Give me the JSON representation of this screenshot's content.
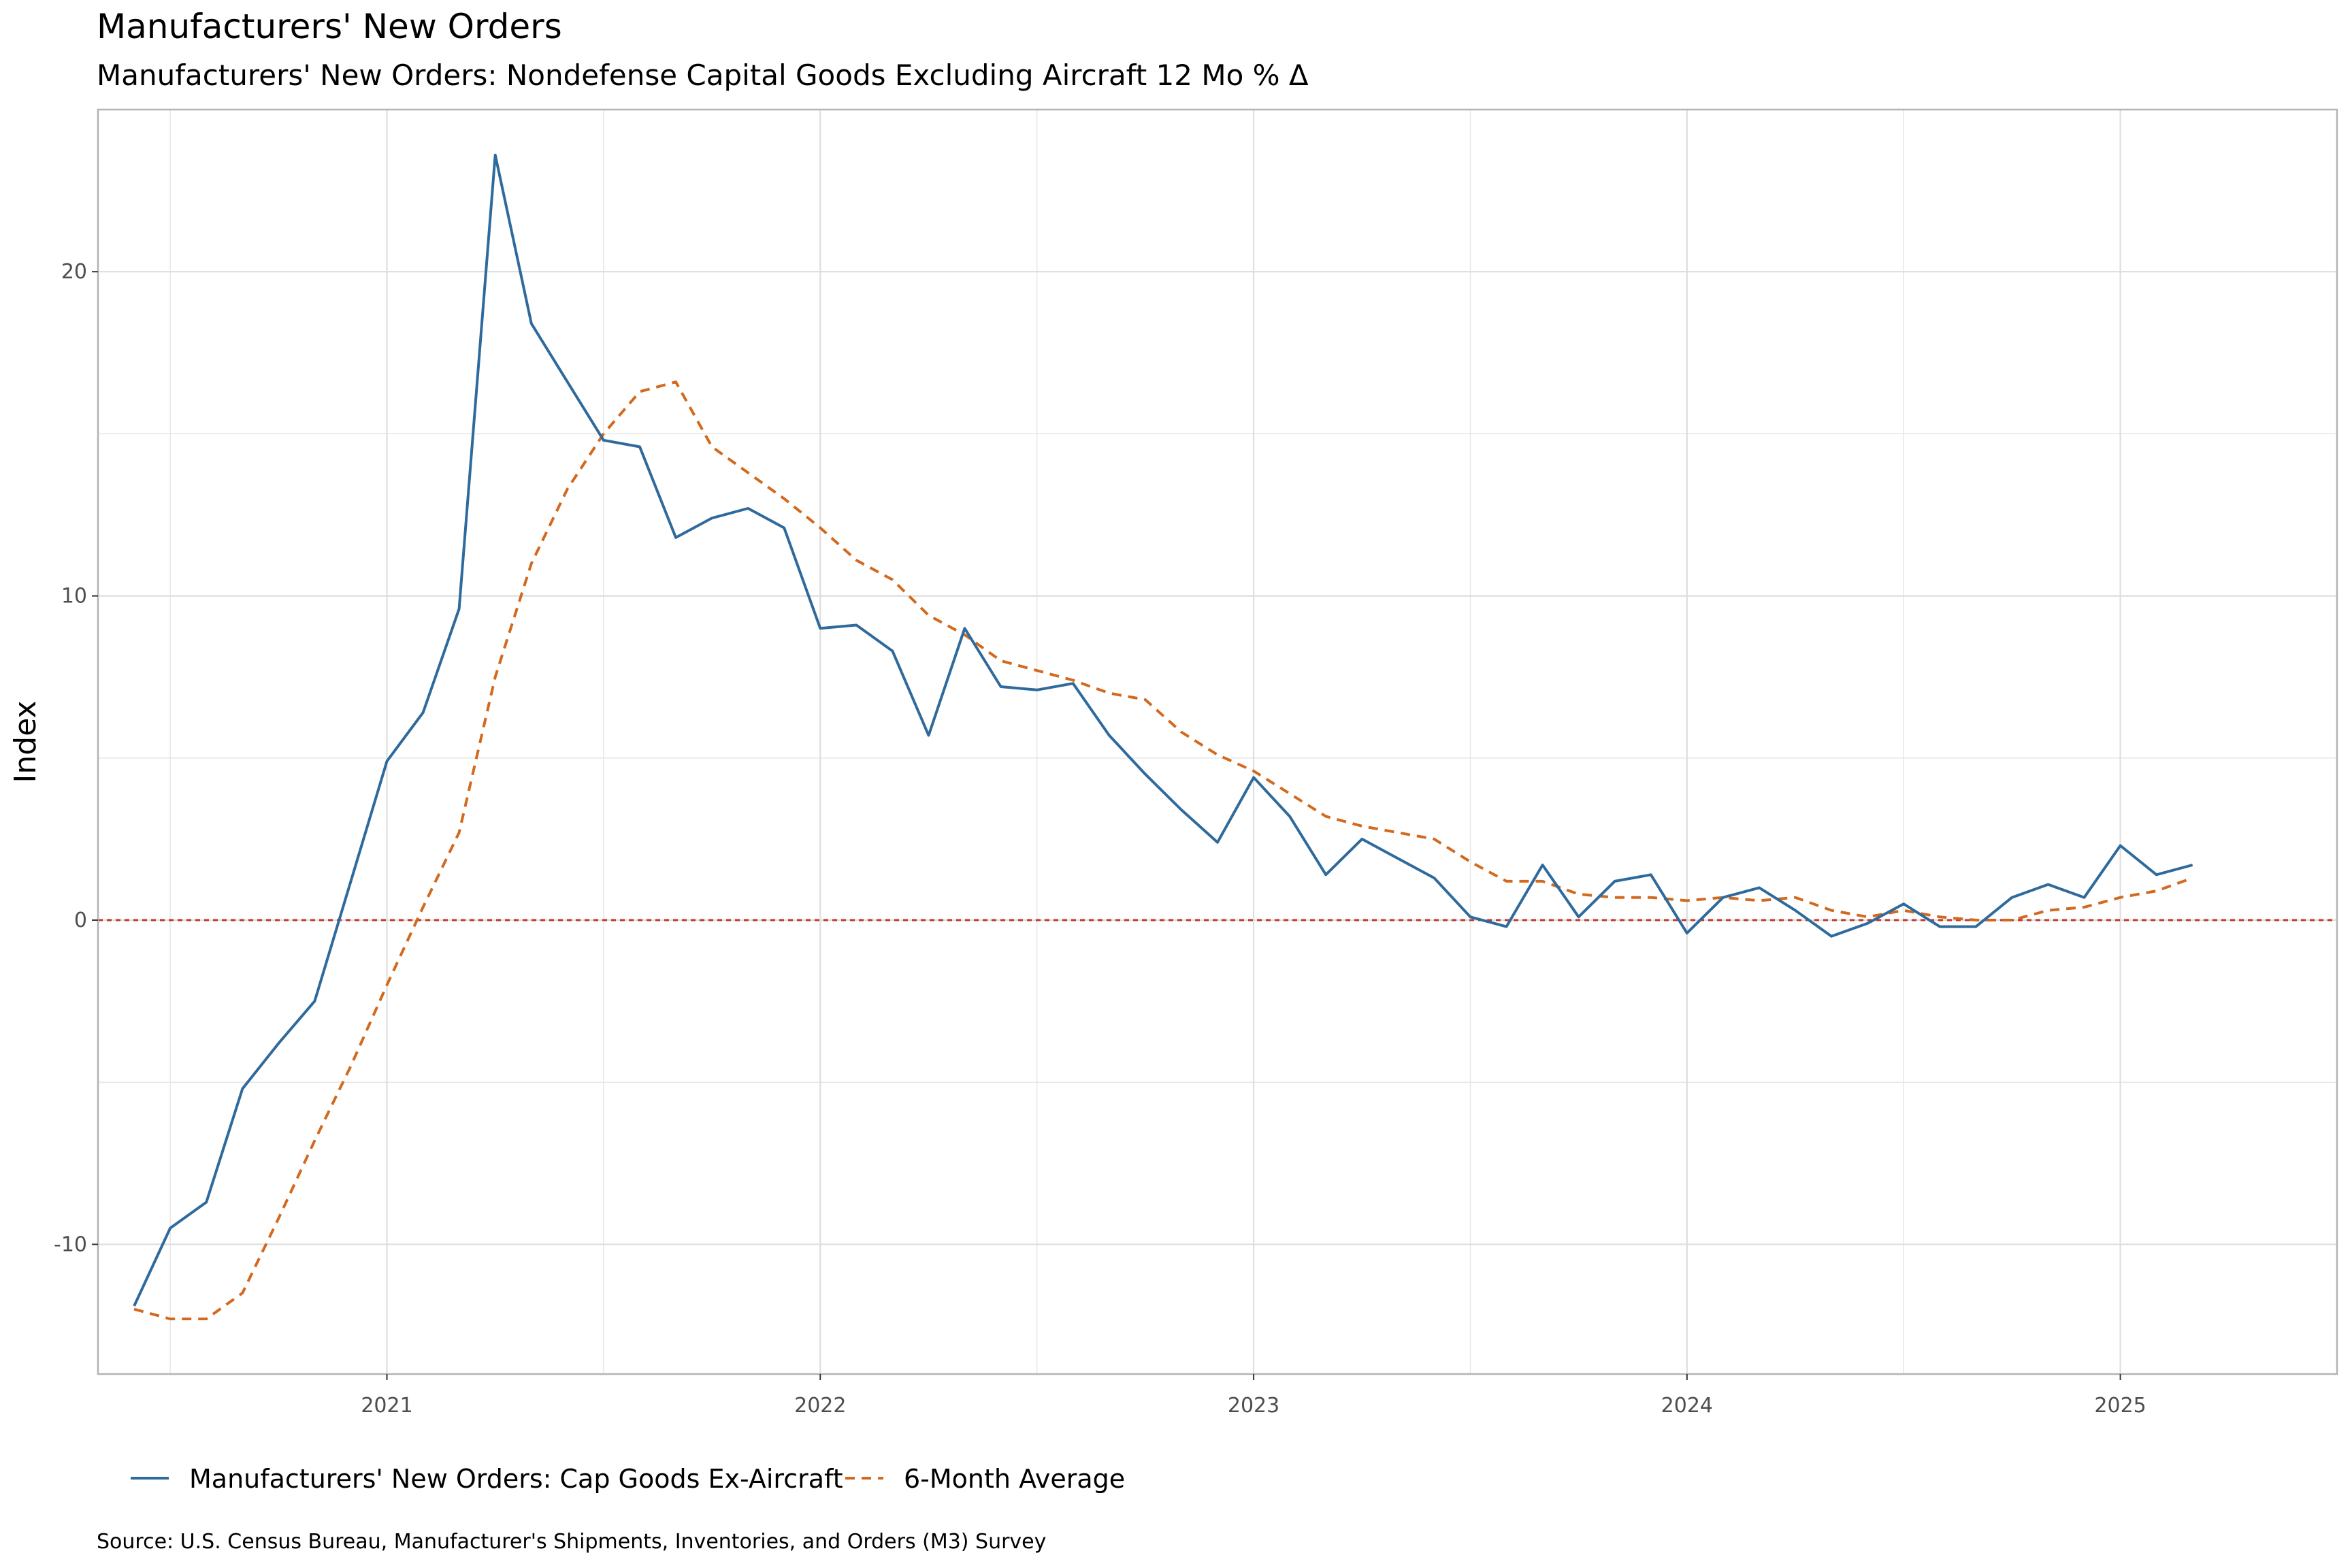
{
  "title": "Manufacturers' New Orders",
  "subtitle": "Manufacturers' New Orders: Nondefense Capital Goods Excluding Aircraft 12 Mo % Δ",
  "source": "Source: U.S. Census Bureau, Manufacturer's Shipments, Inventories, and Orders (M3) Survey",
  "colors": {
    "series1": "#2f6a9c",
    "series2": "#d2691e",
    "zero_line": "#c0392b",
    "grid": "#e6e6e6",
    "panel_border": "#b3b3b3"
  },
  "chart_data": {
    "type": "line",
    "ylabel": "Index",
    "xlabel": "",
    "ylim": [
      -14,
      25
    ],
    "xlim": [
      "2020-05",
      "2025-07"
    ],
    "y_ticks": [
      -10,
      0,
      10,
      20
    ],
    "y_tick_labels": [
      "-10",
      "0",
      "10",
      "20"
    ],
    "x_ticks": [
      "2021-01",
      "2022-01",
      "2023-01",
      "2024-01",
      "2025-01"
    ],
    "x_tick_labels": [
      "2021",
      "2022",
      "2023",
      "2024",
      "2025"
    ],
    "grid": true,
    "legend_position": "bottom",
    "reference_line": {
      "y": 0,
      "style": "dashed"
    },
    "x": [
      "2020-06",
      "2020-07",
      "2020-08",
      "2020-09",
      "2020-10",
      "2020-11",
      "2020-12",
      "2021-01",
      "2021-02",
      "2021-03",
      "2021-04",
      "2021-05",
      "2021-06",
      "2021-07",
      "2021-08",
      "2021-09",
      "2021-10",
      "2021-11",
      "2021-12",
      "2022-01",
      "2022-02",
      "2022-03",
      "2022-04",
      "2022-05",
      "2022-06",
      "2022-07",
      "2022-08",
      "2022-09",
      "2022-10",
      "2022-11",
      "2022-12",
      "2023-01",
      "2023-02",
      "2023-03",
      "2023-04",
      "2023-05",
      "2023-06",
      "2023-07",
      "2023-08",
      "2023-09",
      "2023-10",
      "2023-11",
      "2023-12",
      "2024-01",
      "2024-02",
      "2024-03",
      "2024-04",
      "2024-05",
      "2024-06",
      "2024-07",
      "2024-08",
      "2024-09",
      "2024-10",
      "2024-11",
      "2024-12",
      "2025-01",
      "2025-02",
      "2025-03"
    ],
    "series": [
      {
        "name": "Manufacturers' New Orders: Cap Goods Ex-Aircraft",
        "style": "solid",
        "values": [
          -11.9,
          -9.5,
          -8.7,
          -5.2,
          -3.8,
          -2.5,
          1.2,
          4.9,
          6.4,
          9.6,
          23.6,
          18.4,
          16.6,
          14.8,
          14.6,
          11.8,
          12.4,
          12.7,
          12.1,
          9.0,
          9.1,
          8.3,
          5.7,
          9.0,
          7.2,
          7.1,
          7.3,
          5.7,
          4.5,
          3.4,
          2.4,
          4.4,
          3.2,
          1.4,
          2.5,
          1.9,
          1.3,
          0.1,
          -0.2,
          1.7,
          0.1,
          1.2,
          1.4,
          -0.4,
          0.7,
          1.0,
          0.3,
          -0.5,
          -0.1,
          0.5,
          -0.2,
          -0.2,
          0.7,
          1.1,
          0.7,
          2.3,
          1.4,
          1.7
        ]
      },
      {
        "name": "6-Month Average",
        "style": "dashed",
        "values": [
          -12.0,
          -12.3,
          -12.3,
          -11.5,
          -9.2,
          -6.8,
          -4.5,
          -2.0,
          0.4,
          2.7,
          7.5,
          11.0,
          13.3,
          15.0,
          16.3,
          16.6,
          14.6,
          13.8,
          13.0,
          12.1,
          11.1,
          10.5,
          9.4,
          8.8,
          8.0,
          7.7,
          7.4,
          7.0,
          6.8,
          5.8,
          5.1,
          4.6,
          3.9,
          3.2,
          2.9,
          2.7,
          2.5,
          1.8,
          1.2,
          1.2,
          0.8,
          0.7,
          0.7,
          0.6,
          0.7,
          0.6,
          0.7,
          0.3,
          0.1,
          0.3,
          0.1,
          0.0,
          0.0,
          0.3,
          0.4,
          0.7,
          0.9,
          1.3
        ]
      }
    ]
  }
}
